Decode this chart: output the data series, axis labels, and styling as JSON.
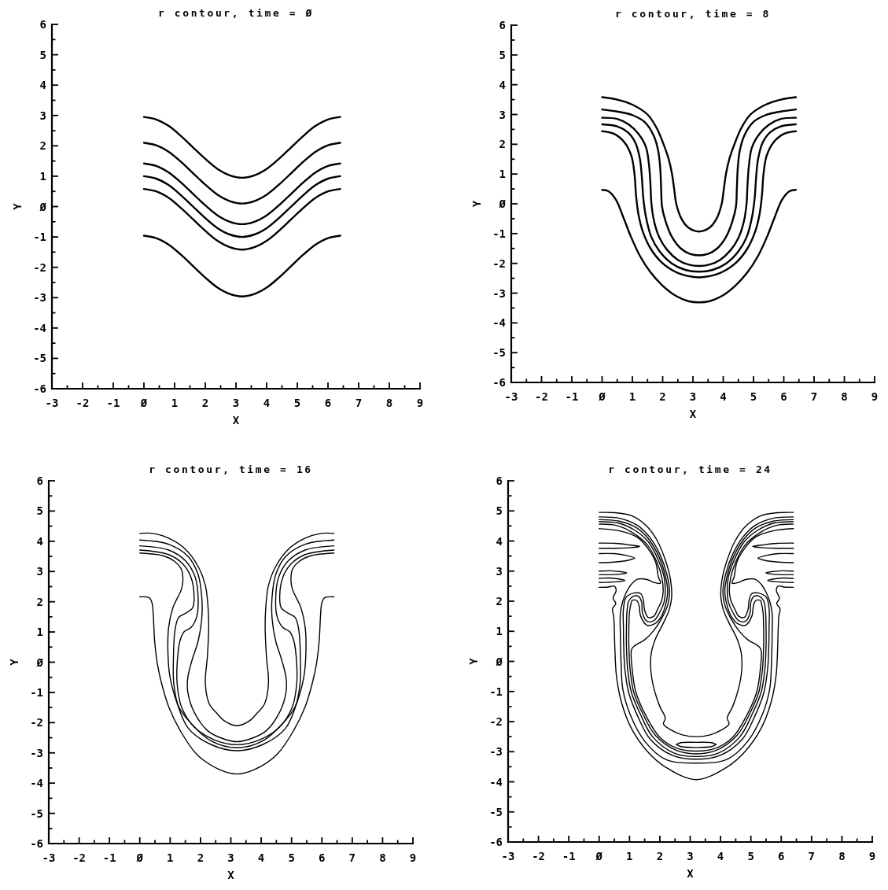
{
  "chart_data": [
    {
      "type": "line",
      "title": "r contour, time = Ø",
      "xlabel": "X",
      "ylabel": "Y",
      "xlim": [
        -3,
        9
      ],
      "ylim": [
        -6,
        6
      ],
      "xticks": [
        -3,
        {
          "value": -2.5,
          "label": null
        },
        -2,
        {
          "value": -1.5,
          "label": null
        },
        -1,
        {
          "value": -0.5,
          "label": null
        },
        {
          "value": 0,
          "label": "Ø"
        },
        {
          "value": 0.5,
          "label": null
        },
        1,
        {
          "value": 1.5,
          "label": null
        },
        2,
        {
          "value": 2.5,
          "label": null
        },
        3,
        {
          "value": 3.5,
          "label": null
        },
        4,
        {
          "value": 4.5,
          "label": null
        },
        5,
        {
          "value": 5.5,
          "label": null
        },
        6,
        {
          "value": 6.5,
          "label": null
        },
        7,
        {
          "value": 7.5,
          "label": null
        },
        8,
        {
          "value": 8.5,
          "label": null
        },
        9
      ],
      "yticks": [
        -6,
        {
          "value": -5.5,
          "label": null
        },
        -5,
        {
          "value": -4.5,
          "label": null
        },
        -4,
        {
          "value": -3.5,
          "label": null
        },
        -3,
        {
          "value": -2.5,
          "label": null
        },
        -2,
        {
          "value": -1.5,
          "label": null
        },
        -1,
        {
          "value": -0.5,
          "label": null
        },
        {
          "value": 0,
          "label": "Ø"
        },
        {
          "value": 0.5,
          "label": null
        },
        1,
        {
          "value": 1.5,
          "label": null
        },
        2,
        {
          "value": 2.5,
          "label": null
        },
        3,
        {
          "value": 3.5,
          "label": null
        },
        4,
        {
          "value": 4.5,
          "label": null
        },
        5,
        {
          "value": 5.5,
          "label": null
        },
        6
      ],
      "x": [
        0,
        0.4,
        0.8,
        1.2,
        1.6,
        2,
        2.4,
        2.8,
        3.2,
        3.6,
        4,
        4.4,
        4.8,
        5.2,
        5.6,
        6,
        6.4
      ],
      "series": [
        {
          "color": "#000000",
          "values": [
            2.95,
            2.87,
            2.66,
            2.33,
            1.95,
            1.57,
            1.24,
            1.03,
            0.95,
            1.03,
            1.24,
            1.57,
            1.95,
            2.33,
            2.66,
            2.87,
            2.95
          ]
        },
        {
          "color": "#000000",
          "values": [
            2.1,
            2.02,
            1.81,
            1.48,
            1.1,
            0.72,
            0.39,
            0.18,
            0.1,
            0.18,
            0.39,
            0.72,
            1.1,
            1.48,
            1.81,
            2.02,
            2.1
          ]
        },
        {
          "color": "#000000",
          "values": [
            1.42,
            1.34,
            1.13,
            0.8,
            0.42,
            0.04,
            -0.29,
            -0.5,
            -0.58,
            -0.5,
            -0.29,
            0.04,
            0.42,
            0.8,
            1.13,
            1.34,
            1.42
          ]
        },
        {
          "color": "#000000",
          "values": [
            1,
            0.92,
            0.71,
            0.38,
            0,
            -0.38,
            -0.71,
            -0.92,
            -1,
            -0.92,
            -0.71,
            -0.38,
            0,
            0.38,
            0.71,
            0.92,
            1
          ]
        },
        {
          "color": "#000000",
          "values": [
            0.58,
            0.5,
            0.29,
            -0.04,
            -0.42,
            -0.8,
            -1.13,
            -1.34,
            -1.42,
            -1.34,
            -1.13,
            -0.8,
            -0.42,
            -0.04,
            0.29,
            0.5,
            0.58
          ]
        },
        {
          "color": "#000000",
          "values": [
            -0.96,
            -1.04,
            -1.25,
            -1.58,
            -1.96,
            -2.34,
            -2.67,
            -2.88,
            -2.96,
            -2.88,
            -2.67,
            -2.34,
            -1.96,
            -1.58,
            -1.25,
            -1.04,
            -0.96
          ]
        }
      ]
    },
    {
      "type": "line",
      "title": "r contour, time = 8",
      "xlabel": "X",
      "ylabel": "Y",
      "xlim": [
        -3,
        9
      ],
      "ylim": [
        -6,
        6
      ],
      "xticks": [
        -3,
        {
          "value": -2.5,
          "label": null
        },
        -2,
        {
          "value": -1.5,
          "label": null
        },
        -1,
        {
          "value": -0.5,
          "label": null
        },
        {
          "value": 0,
          "label": "Ø"
        },
        {
          "value": 0.5,
          "label": null
        },
        1,
        {
          "value": 1.5,
          "label": null
        },
        2,
        {
          "value": 2.5,
          "label": null
        },
        3,
        {
          "value": 3.5,
          "label": null
        },
        4,
        {
          "value": 4.5,
          "label": null
        },
        5,
        {
          "value": 5.5,
          "label": null
        },
        6,
        {
          "value": 6.5,
          "label": null
        },
        7,
        {
          "value": 7.5,
          "label": null
        },
        8,
        {
          "value": 8.5,
          "label": null
        },
        9
      ],
      "yticks": [
        -6,
        {
          "value": -5.5,
          "label": null
        },
        -5,
        {
          "value": -4.5,
          "label": null
        },
        -4,
        {
          "value": -3.5,
          "label": null
        },
        -3,
        {
          "value": -2.5,
          "label": null
        },
        -2,
        {
          "value": -1.5,
          "label": null
        },
        -1,
        {
          "value": -0.5,
          "label": null
        },
        {
          "value": 0,
          "label": "Ø"
        },
        {
          "value": 0.5,
          "label": null
        },
        1,
        {
          "value": 1.5,
          "label": null
        },
        2,
        {
          "value": 2.5,
          "label": null
        },
        3,
        {
          "value": 3.5,
          "label": null
        },
        4,
        {
          "value": 4.5,
          "label": null
        },
        5,
        {
          "value": 5.5,
          "label": null
        },
        6
      ],
      "series": [
        {
          "color": "#000000",
          "x": [
            0,
            0.5,
            1,
            1.5,
            1.8,
            2.03,
            2.2,
            2.31,
            2.38,
            2.45,
            2.62,
            2.85,
            3.2,
            3.55,
            3.78,
            3.95,
            4.02,
            4.09,
            4.2,
            4.37,
            4.6,
            4.9,
            5.4,
            5.9,
            6.4
          ],
          "values": [
            3.58,
            3.5,
            3.33,
            3,
            2.55,
            2,
            1.5,
            1,
            0.5,
            0,
            -0.5,
            -0.8,
            -0.93,
            -0.8,
            -0.5,
            0,
            0.5,
            1,
            1.5,
            2,
            2.55,
            3,
            3.33,
            3.5,
            3.58
          ]
        },
        {
          "color": "#000000",
          "x": [
            0,
            0.5,
            1,
            1.4,
            1.7,
            1.85,
            1.92,
            1.95,
            1.98,
            2.1,
            2.3,
            2.6,
            2.9,
            3.2,
            3.5,
            3.8,
            4.1,
            4.3,
            4.42,
            4.45,
            4.48,
            4.55,
            4.7,
            5,
            5.4,
            5.9,
            6.4
          ],
          "values": [
            3.17,
            3.1,
            2.98,
            2.75,
            2.3,
            1.8,
            1.2,
            0.5,
            -0.1,
            -0.6,
            -1.1,
            -1.5,
            -1.68,
            -1.73,
            -1.68,
            -1.5,
            -1.1,
            -0.6,
            -0.1,
            0.5,
            1.2,
            1.8,
            2.3,
            2.75,
            2.98,
            3.1,
            3.17
          ]
        },
        {
          "color": "#000000",
          "x": [
            0,
            0.5,
            0.9,
            1.2,
            1.45,
            1.55,
            1.6,
            1.63,
            1.72,
            1.9,
            2.15,
            2.5,
            2.85,
            3.2,
            3.55,
            3.9,
            4.25,
            4.5,
            4.68,
            4.77,
            4.8,
            4.85,
            4.95,
            5.2,
            5.5,
            5.9,
            6.4
          ],
          "values": [
            2.89,
            2.85,
            2.65,
            2.35,
            1.9,
            1.3,
            0.6,
            0,
            -0.6,
            -1.15,
            -1.55,
            -1.88,
            -2.04,
            -2.09,
            -2.04,
            -1.88,
            -1.55,
            -1.15,
            -0.6,
            0,
            0.6,
            1.3,
            1.9,
            2.35,
            2.65,
            2.85,
            2.89
          ]
        },
        {
          "color": "#000000",
          "x": [
            0,
            0.5,
            0.85,
            1.1,
            1.25,
            1.32,
            1.36,
            1.45,
            1.62,
            1.9,
            2.3,
            2.75,
            3.2,
            3.65,
            4.1,
            4.5,
            4.78,
            4.95,
            5.04,
            5.08,
            5.15,
            5.3,
            5.55,
            5.9,
            6.4
          ],
          "values": [
            2.67,
            2.6,
            2.4,
            2.05,
            1.5,
            0.8,
            0.2,
            -0.45,
            -1.1,
            -1.6,
            -2,
            -2.22,
            -2.28,
            -2.22,
            -2,
            -1.6,
            -1.1,
            -0.45,
            0.2,
            0.8,
            1.5,
            2.05,
            2.4,
            2.6,
            2.67
          ]
        },
        {
          "color": "#000000",
          "x": [
            0,
            0.4,
            0.75,
            0.97,
            1.07,
            1.12,
            1.2,
            1.35,
            1.6,
            1.95,
            2.45,
            2.85,
            3.2,
            3.55,
            3.95,
            4.45,
            4.8,
            5.05,
            5.2,
            5.28,
            5.33,
            5.43,
            5.65,
            6,
            6.4
          ],
          "values": [
            2.44,
            2.35,
            2.05,
            1.6,
            1,
            0.3,
            -0.35,
            -0.95,
            -1.5,
            -1.95,
            -2.3,
            -2.43,
            -2.47,
            -2.43,
            -2.3,
            -1.95,
            -1.5,
            -0.95,
            -0.35,
            0.3,
            1,
            1.6,
            2.05,
            2.35,
            2.44
          ]
        },
        {
          "color": "#000000",
          "x": [
            0,
            0.2,
            0.45,
            0.7,
            0.95,
            1.25,
            1.6,
            2,
            2.45,
            2.85,
            3.2,
            3.55,
            3.95,
            4.4,
            4.8,
            5.15,
            5.45,
            5.7,
            5.95,
            6.2,
            6.4
          ],
          "values": [
            0.47,
            0.43,
            0.15,
            -0.45,
            -1.1,
            -1.75,
            -2.3,
            -2.75,
            -3.1,
            -3.27,
            -3.31,
            -3.27,
            -3.1,
            -2.75,
            -2.3,
            -1.75,
            -1.1,
            -0.45,
            0.15,
            0.43,
            0.47
          ]
        }
      ]
    },
    {
      "type": "line",
      "title": "r contour, time = 16",
      "xlabel": "X",
      "ylabel": "Y",
      "xlim": [
        -3,
        9
      ],
      "ylim": [
        -6,
        6
      ],
      "xticks": [
        -3,
        {
          "value": -2.5,
          "label": null
        },
        -2,
        {
          "value": -1.5,
          "label": null
        },
        -1,
        {
          "value": -0.5,
          "label": null
        },
        {
          "value": 0,
          "label": "Ø"
        },
        {
          "value": 0.5,
          "label": null
        },
        1,
        {
          "value": 1.5,
          "label": null
        },
        2,
        {
          "value": 2.5,
          "label": null
        },
        3,
        {
          "value": 3.5,
          "label": null
        },
        4,
        {
          "value": 4.5,
          "label": null
        },
        5,
        {
          "value": 5.5,
          "label": null
        },
        6,
        {
          "value": 6.5,
          "label": null
        },
        7,
        {
          "value": 7.5,
          "label": null
        },
        8,
        {
          "value": 8.5,
          "label": null
        },
        9
      ],
      "yticks": [
        -6,
        {
          "value": -5.5,
          "label": null
        },
        -5,
        {
          "value": -4.5,
          "label": null
        },
        -4,
        {
          "value": -3.5,
          "label": null
        },
        -3,
        {
          "value": -2.5,
          "label": null
        },
        -2,
        {
          "value": -1.5,
          "label": null
        },
        -1,
        {
          "value": -0.5,
          "label": null
        },
        {
          "value": 0,
          "label": "Ø"
        },
        {
          "value": 0.5,
          "label": null
        },
        1,
        {
          "value": 1.5,
          "label": null
        },
        2,
        {
          "value": 2.5,
          "label": null
        },
        3,
        {
          "value": 3.5,
          "label": null
        },
        4,
        {
          "value": 4.5,
          "label": null
        },
        5,
        {
          "value": 5.5,
          "label": null
        },
        6
      ],
      "series": [
        {
          "color": "#000000",
          "x": [
            0,
            0.44,
            0.95,
            1.51,
            1.92,
            2.16,
            2.25,
            2.27,
            2.23,
            2.16,
            2.29,
            2.53,
            2.8,
            3.2,
            3.6,
            3.87,
            4.11,
            4.24,
            4.17,
            4.13,
            4.15,
            4.24,
            4.48,
            4.89,
            5.45,
            5.96,
            6.4
          ],
          "values": [
            4.26,
            4.26,
            4.1,
            3.73,
            3.17,
            2.54,
            1.8,
            1.15,
            0.22,
            -0.71,
            -1.38,
            -1.68,
            -1.95,
            -2.1,
            -1.95,
            -1.68,
            -1.38,
            -0.71,
            0.22,
            1.15,
            1.8,
            2.54,
            3.17,
            3.73,
            4.1,
            4.26,
            4.26
          ]
        },
        {
          "color": "#000000",
          "x": [
            0,
            0.95,
            1.6,
            1.92,
            2.04,
            2.04,
            1.92,
            1.74,
            1.58,
            1.58,
            1.79,
            2.25,
            2.8,
            3.2,
            3.6,
            4.15,
            4.61,
            4.82,
            4.82,
            4.66,
            4.48,
            4.36,
            4.36,
            4.48,
            4.8,
            5.45,
            6.4
          ],
          "values": [
            4.04,
            3.9,
            3.49,
            2.9,
            2.17,
            1.43,
            0.69,
            0.13,
            -0.52,
            -0.98,
            -1.65,
            -2.28,
            -2.55,
            -2.63,
            -2.55,
            -2.28,
            -1.65,
            -0.98,
            -0.52,
            0.13,
            0.69,
            1.43,
            2.17,
            2.9,
            3.49,
            3.9,
            4.04
          ]
        },
        {
          "color": "#000000",
          "x": [
            0,
            0.95,
            1.51,
            1.83,
            1.92,
            1.88,
            1.69,
            1.46,
            1.32,
            1.23,
            1.23,
            1.37,
            1.79,
            2.43,
            3.2,
            3.97,
            4.61,
            5.03,
            5.17,
            5.17,
            5.08,
            4.94,
            4.71,
            4.52,
            4.48,
            4.57,
            4.89,
            5.45,
            6.4
          ],
          "values": [
            3.85,
            3.71,
            3.35,
            2.8,
            2.17,
            1.52,
            1.15,
            1.01,
            0.69,
            -0.06,
            -0.71,
            -1.47,
            -2.14,
            -2.56,
            -2.73,
            -2.56,
            -2.14,
            -1.47,
            -0.71,
            -0.06,
            0.69,
            1.01,
            1.15,
            1.52,
            2.17,
            2.8,
            3.35,
            3.71,
            3.85
          ]
        },
        {
          "color": "#000000",
          "x": [
            0,
            0.95,
            1.42,
            1.69,
            1.79,
            1.74,
            1.51,
            1.28,
            1.16,
            1.11,
            1.12,
            1.28,
            1.74,
            2.34,
            3.2,
            4.06,
            4.66,
            5.12,
            5.28,
            5.29,
            5.24,
            5.12,
            4.89,
            4.66,
            4.61,
            4.71,
            4.98,
            5.45,
            6.4
          ],
          "values": [
            3.71,
            3.56,
            3.25,
            2.8,
            2.17,
            1.8,
            1.62,
            1.48,
            1.06,
            0.22,
            -0.71,
            -1.47,
            -2.08,
            -2.6,
            -2.83,
            -2.6,
            -2.08,
            -1.47,
            -0.71,
            0.22,
            1.06,
            1.48,
            1.62,
            1.8,
            2.17,
            2.8,
            3.25,
            3.56,
            3.71
          ]
        },
        {
          "color": "#000000",
          "x": [
            0,
            0.77,
            1.14,
            1.37,
            1.42,
            1.37,
            1.09,
            0.95,
            0.93,
            1,
            1.23,
            1.6,
            2.34,
            3.2,
            4.06,
            4.8,
            5.17,
            5.4,
            5.47,
            5.45,
            5.31,
            5.03,
            4.98,
            5.03,
            5.26,
            5.63,
            6.4
          ],
          "values": [
            3.61,
            3.52,
            3.34,
            3.07,
            2.71,
            2.41,
            1.8,
            1.15,
            0.22,
            -0.52,
            -1.36,
            -2.19,
            -2.72,
            -2.93,
            -2.72,
            -2.19,
            -1.36,
            -0.52,
            0.22,
            1.15,
            1.8,
            2.41,
            2.71,
            3.07,
            3.34,
            3.52,
            3.61
          ]
        },
        {
          "color": "#000000",
          "x": [
            0,
            0.31,
            0.4,
            0.44,
            0.49,
            0.58,
            0.72,
            0.95,
            1.32,
            1.88,
            2.62,
            3.2,
            3.78,
            4.52,
            5.08,
            5.45,
            5.68,
            5.82,
            5.91,
            5.96,
            6,
            6.09,
            6.4
          ],
          "values": [
            2.16,
            2.13,
            1.97,
            1.62,
            0.69,
            -0.06,
            -0.71,
            -1.47,
            -2.24,
            -3.05,
            -3.55,
            -3.7,
            -3.55,
            -3.05,
            -2.24,
            -1.47,
            -0.71,
            -0.06,
            0.69,
            1.62,
            1.97,
            2.13,
            2.16
          ]
        }
      ]
    },
    {
      "type": "line",
      "title": "r contour, time = 24",
      "xlabel": "X",
      "ylabel": "Y",
      "xlim": [
        -3,
        9
      ],
      "ylim": [
        -6,
        6
      ],
      "xticks": [
        -3,
        {
          "value": -2.5,
          "label": null
        },
        -2,
        {
          "value": -1.5,
          "label": null
        },
        -1,
        {
          "value": -0.5,
          "label": null
        },
        {
          "value": 0,
          "label": "Ø"
        },
        {
          "value": 0.5,
          "label": null
        },
        1,
        {
          "value": 1.5,
          "label": null
        },
        2,
        {
          "value": 2.5,
          "label": null
        },
        3,
        {
          "value": 3.5,
          "label": null
        },
        4,
        {
          "value": 4.5,
          "label": null
        },
        5,
        {
          "value": 5.5,
          "label": null
        },
        6,
        {
          "value": 6.5,
          "label": null
        },
        7,
        {
          "value": 7.5,
          "label": null
        },
        8,
        {
          "value": 8.5,
          "label": null
        },
        9
      ],
      "yticks": [
        -6,
        {
          "value": -5.5,
          "label": null
        },
        -5,
        {
          "value": -4.5,
          "label": null
        },
        -4,
        {
          "value": -3.5,
          "label": null
        },
        -3,
        {
          "value": -2.5,
          "label": null
        },
        -2,
        {
          "value": -1.5,
          "label": null
        },
        -1,
        {
          "value": -0.5,
          "label": null
        },
        {
          "value": 0,
          "label": "Ø"
        },
        {
          "value": 0.5,
          "label": null
        },
        1,
        {
          "value": 1.5,
          "label": null
        },
        2,
        {
          "value": 2.5,
          "label": null
        },
        3,
        {
          "value": 3.5,
          "label": null
        },
        4,
        {
          "value": 4.5,
          "label": null
        },
        5,
        {
          "value": 5.5,
          "label": null
        },
        6
      ],
      "series": [
        {
          "color": "#000000",
          "x": [
            0,
            0.52,
            1.07,
            1.54,
            1.91,
            2.18,
            2.35,
            2.39,
            2.3,
            2.09,
            1.86,
            1.72,
            1.7,
            1.81,
            2,
            2.18,
            2.12,
            2.37,
            2.74,
            3.2,
            3.66,
            4.03,
            4.28,
            4.22,
            4.4,
            4.59,
            4.7,
            4.68,
            4.54,
            4.31,
            4.1,
            4.01,
            4.05,
            4.22,
            4.49,
            4.86,
            5.33,
            5.88,
            6.4
          ],
          "values": [
            4.95,
            4.94,
            4.84,
            4.52,
            4.02,
            3.37,
            2.72,
            2.16,
            1.69,
            1.22,
            0.76,
            0.29,
            -0.27,
            -0.92,
            -1.5,
            -1.88,
            -2.08,
            -2.28,
            -2.44,
            -2.5,
            -2.44,
            -2.28,
            -2.08,
            -1.88,
            -1.5,
            -0.92,
            -0.27,
            0.29,
            0.76,
            1.22,
            1.69,
            2.16,
            2.72,
            3.37,
            4.02,
            4.52,
            4.84,
            4.94,
            4.95
          ]
        },
        {
          "color": "#000000",
          "x": [
            0,
            0.7,
            1.26,
            1.67,
            2,
            2.23,
            2.32,
            2.26,
            2.05,
            1.77,
            1.49,
            1.17,
            1.07,
            1.09,
            1.21,
            1.54,
            2,
            2.6,
            3.2,
            3.8,
            4.4,
            4.86,
            5.19,
            5.31,
            5.33,
            5.23,
            4.91,
            4.63,
            4.35,
            4.14,
            4.08,
            4.17,
            4.4,
            4.73,
            5.14,
            5.7,
            6.4
          ],
          "values": [
            4.8,
            4.75,
            4.52,
            4.12,
            3.56,
            2.9,
            2.34,
            1.88,
            1.41,
            0.99,
            0.71,
            0.52,
            0.4,
            -0.27,
            -1.02,
            -1.8,
            -2.52,
            -2.9,
            -2.98,
            -2.9,
            -2.52,
            -1.8,
            -1.02,
            -0.27,
            0.4,
            0.52,
            0.71,
            0.99,
            1.41,
            1.88,
            2.34,
            2.9,
            3.56,
            4.12,
            4.52,
            4.75,
            4.8
          ]
        },
        {
          "color": "#000000",
          "x": [
            0,
            0.66,
            1.23,
            1.65,
            1.98,
            2.18,
            2.26,
            2.2,
            2.05,
            1.83,
            1.58,
            1.37,
            1.31,
            1.24,
            1.09,
            1.05,
            1,
            0.98,
            0.98,
            1.02,
            1.14,
            1.43,
            1.85,
            2.55,
            3.2,
            3.85,
            4.55,
            4.97,
            5.26,
            5.38,
            5.42,
            5.42,
            5.4,
            5.35,
            5.31,
            5.16,
            5.09,
            5.03,
            4.82,
            4.57,
            4.35,
            4.2,
            4.14,
            4.22,
            4.42,
            4.75,
            5.17,
            5.74,
            6.4
          ],
          "values": [
            4.71,
            4.66,
            4.44,
            4.04,
            3.46,
            2.85,
            2.34,
            1.92,
            1.5,
            1.25,
            1.2,
            1.5,
            1.88,
            2.02,
            2.03,
            1.92,
            1.64,
            1.13,
            0.48,
            -0.27,
            -1.02,
            -1.72,
            -2.45,
            -2.96,
            -3.07,
            -2.96,
            -2.45,
            -1.72,
            -1.02,
            -0.27,
            0.48,
            1.13,
            1.64,
            1.92,
            2.03,
            2.02,
            1.88,
            1.5,
            1.2,
            1.25,
            1.5,
            1.92,
            2.34,
            2.85,
            3.46,
            4.04,
            4.44,
            4.66,
            4.71
          ]
        },
        {
          "color": "#000000",
          "x": [
            0,
            0.61,
            1.17,
            1.63,
            1.95,
            2.14,
            2.18,
            2.14,
            2,
            1.81,
            1.58,
            1.43,
            1.4,
            1.3,
            1.12,
            0.98,
            0.92,
            0.9,
            0.9,
            0.94,
            1.06,
            1.36,
            1.76,
            2.46,
            3.2,
            3.94,
            4.64,
            5.04,
            5.34,
            5.46,
            5.5,
            5.5,
            5.48,
            5.42,
            5.28,
            5.1,
            5,
            4.97,
            4.82,
            4.59,
            4.4,
            4.26,
            4.22,
            4.26,
            4.45,
            4.77,
            5.23,
            5.79,
            6.4
          ],
          "values": [
            4.64,
            4.6,
            4.36,
            3.96,
            3.37,
            2.81,
            2.34,
            1.97,
            1.64,
            1.36,
            1.33,
            1.6,
            1.97,
            2.16,
            2.16,
            2.02,
            1.69,
            1.13,
            0.48,
            -0.27,
            -1.02,
            -1.76,
            -2.5,
            -3.04,
            -3.16,
            -3.04,
            -2.5,
            -1.76,
            -1.02,
            -0.27,
            0.48,
            1.13,
            1.69,
            2.02,
            2.16,
            2.16,
            1.97,
            1.6,
            1.33,
            1.36,
            1.64,
            1.97,
            2.34,
            2.81,
            3.37,
            3.96,
            4.36,
            4.6,
            4.64
          ]
        },
        {
          "color": "#000000",
          "x": [
            0,
            0.56,
            1.1,
            1.58,
            1.91,
            2.07,
            2.11,
            2.06,
            1.93,
            1.8,
            1.61,
            1.49,
            1.46,
            1.37,
            1.15,
            0.89,
            0.8,
            0.8,
            0.81,
            0.85,
            0.98,
            1.28,
            1.68,
            2.41,
            3.2,
            3.99,
            4.72,
            5.12,
            5.42,
            5.55,
            5.59,
            5.6,
            5.6,
            5.51,
            5.25,
            5.03,
            4.94,
            4.91,
            4.79,
            4.6,
            4.47,
            4.34,
            4.29,
            4.33,
            4.49,
            4.82,
            5.3,
            5.84,
            6.4
          ],
          "values": [
            4.56,
            4.52,
            4.28,
            3.88,
            3.28,
            2.76,
            2.34,
            2.02,
            1.74,
            1.5,
            1.47,
            1.74,
            2.02,
            2.25,
            2.27,
            2.13,
            1.74,
            1.13,
            0.48,
            -0.27,
            -1.06,
            -1.84,
            -2.58,
            -3.12,
            -3.25,
            -3.12,
            -2.58,
            -1.84,
            -1.06,
            -0.27,
            0.48,
            1.13,
            1.74,
            2.13,
            2.27,
            2.25,
            2.02,
            1.74,
            1.47,
            1.5,
            1.74,
            2.02,
            2.34,
            2.76,
            3.28,
            3.88,
            4.28,
            4.52,
            4.56
          ]
        },
        {
          "color": "#000000",
          "x": [
            0,
            0.7,
            1.26,
            1.6,
            1.86,
            1.95,
            2.02,
            1.81,
            1.58,
            1.26,
            1.05,
            0.9,
            0.78,
            0.7,
            0.7,
            0.72,
            0.78,
            1.02,
            1.5,
            2.18,
            3.2,
            4.22,
            4.9,
            5.38,
            5.62,
            5.68,
            5.7,
            5.7,
            5.62,
            5.5,
            5.35,
            5.14,
            4.82,
            4.59,
            4.38,
            4.45,
            4.54,
            4.8,
            5.14,
            5.7,
            6.4
          ],
          "values": [
            4.41,
            4.33,
            4.12,
            3.76,
            3.3,
            2.81,
            2.6,
            2.62,
            2.72,
            2.73,
            2.55,
            2.3,
            2,
            1.6,
            0.85,
            0.01,
            -0.92,
            -1.76,
            -2.65,
            -3.25,
            -3.38,
            -3.25,
            -2.65,
            -1.76,
            -0.92,
            0.01,
            0.85,
            1.6,
            2,
            2.3,
            2.55,
            2.73,
            2.72,
            2.62,
            2.6,
            2.81,
            3.3,
            3.76,
            4.12,
            4.33,
            4.41
          ]
        },
        {
          "color": "#000000",
          "x": [
            0,
            0.3,
            0.5,
            0.56,
            0.46,
            0.55,
            0.44,
            0.48,
            0.5,
            0.52,
            0.57,
            0.73,
            1.05,
            1.58,
            2.2,
            3.2,
            4.2,
            4.82,
            5.35,
            5.67,
            5.83,
            5.88,
            5.9,
            5.92,
            5.96,
            5.85,
            5.94,
            5.84,
            5.9,
            6.1,
            6.4
          ],
          "values": [
            2.46,
            2.47,
            2.5,
            2.35,
            2.1,
            1.92,
            1.75,
            1.49,
            1.07,
            0.38,
            -0.48,
            -1.34,
            -2.2,
            -2.98,
            -3.52,
            -3.93,
            -3.52,
            -2.98,
            -2.2,
            -1.34,
            -0.48,
            0.38,
            1.07,
            1.49,
            1.75,
            1.92,
            2.1,
            2.35,
            2.5,
            2.47,
            2.46
          ]
        },
        {
          "color": "#000000",
          "x": [
            2.55,
            2.7,
            3.2,
            3.7,
            3.85
          ],
          "values": [
            -2.76,
            -2.7,
            -2.69,
            -2.7,
            -2.76
          ]
        },
        {
          "color": "#000000",
          "x": [
            2.55,
            2.7,
            3.2,
            3.7,
            3.85
          ],
          "values": [
            -2.76,
            -2.83,
            -2.86,
            -2.83,
            -2.76
          ]
        },
        {
          "color": "#000000",
          "x": [
            0,
            0.55,
            1,
            1.34,
            1.05,
            0.55,
            0
          ],
          "values": [
            3.93,
            3.92,
            3.87,
            3.82,
            3.78,
            3.76,
            3.76
          ]
        },
        {
          "color": "#000000",
          "x": [
            0,
            0.5,
            0.9,
            1.17,
            0.95,
            0.5,
            0
          ],
          "values": [
            3.58,
            3.58,
            3.52,
            3.43,
            3.36,
            3.3,
            3.28
          ]
        },
        {
          "color": "#000000",
          "x": [
            0,
            0.4,
            0.72,
            0.91,
            0.7,
            0.35,
            0
          ],
          "values": [
            3,
            3.01,
            2.98,
            2.94,
            2.9,
            2.88,
            2.88
          ]
        },
        {
          "color": "#000000",
          "x": [
            0,
            0.35,
            0.65,
            0.85,
            0.62,
            0.3,
            0
          ],
          "values": [
            2.76,
            2.77,
            2.74,
            2.69,
            2.65,
            2.63,
            2.62
          ]
        },
        {
          "color": "#000000",
          "x": [
            6.4,
            5.85,
            5.4,
            5.06,
            5.35,
            5.85,
            6.4
          ],
          "values": [
            3.93,
            3.92,
            3.87,
            3.82,
            3.78,
            3.76,
            3.76
          ]
        },
        {
          "color": "#000000",
          "x": [
            6.4,
            5.9,
            5.5,
            5.23,
            5.45,
            5.9,
            6.4
          ],
          "values": [
            3.58,
            3.58,
            3.52,
            3.43,
            3.36,
            3.3,
            3.28
          ]
        },
        {
          "color": "#000000",
          "x": [
            6.4,
            6,
            5.68,
            5.49,
            5.7,
            6.05,
            6.4
          ],
          "values": [
            3,
            3.01,
            2.98,
            2.94,
            2.9,
            2.88,
            2.88
          ]
        },
        {
          "color": "#000000",
          "x": [
            6.4,
            6.05,
            5.75,
            5.55,
            5.78,
            6.1,
            6.4
          ],
          "values": [
            2.76,
            2.77,
            2.74,
            2.69,
            2.65,
            2.63,
            2.62
          ]
        }
      ]
    }
  ]
}
